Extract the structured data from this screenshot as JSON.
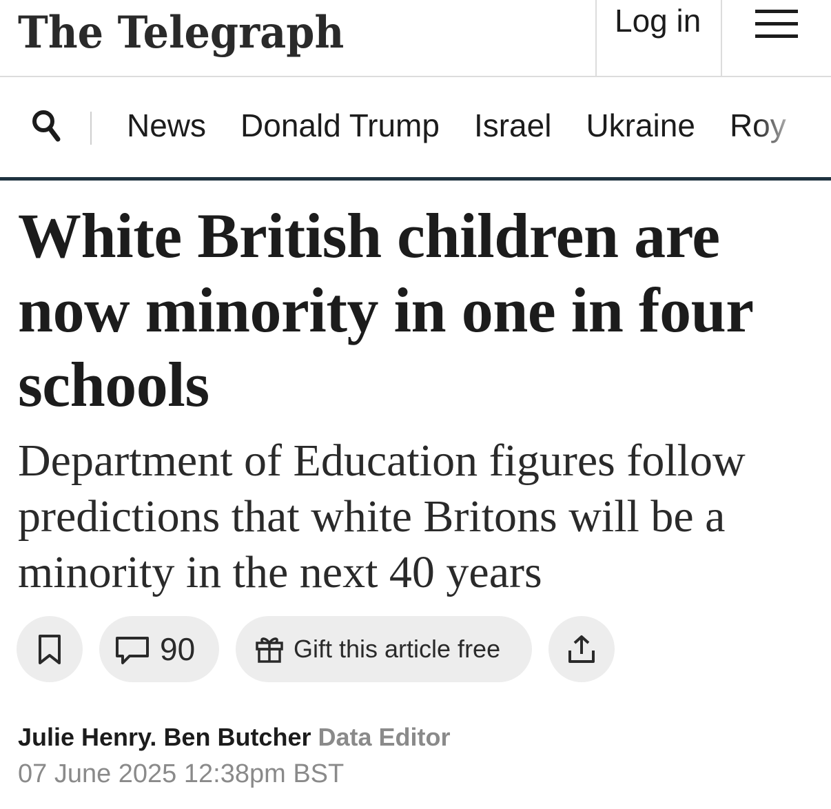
{
  "masthead": {
    "logo_text": "The Telegraph",
    "login_label": "Log in",
    "menu_icon": "hamburger-menu-icon"
  },
  "nav": {
    "search_icon": "search-icon",
    "items": [
      {
        "label": "News"
      },
      {
        "label": "Donald Trump"
      },
      {
        "label": "Israel"
      },
      {
        "label": "Ukraine"
      },
      {
        "label": "Roy"
      }
    ]
  },
  "article": {
    "headline": "White British children are now minority in one in four schools",
    "standfirst": "Department of Education figures follow predictions that white Britons will be a minority in the next 40 years",
    "actions": {
      "bookmark_icon": "bookmark-icon",
      "comment_icon": "comment-icon",
      "comment_count": "90",
      "gift_icon": "gift-icon",
      "gift_label": "Gift this article free",
      "share_icon": "share-icon"
    },
    "byline": {
      "authors": [
        {
          "name": "Julie Henry."
        },
        {
          "name": "Ben Butcher"
        }
      ],
      "role": "Data Editor",
      "date": "07 June 2025",
      "time": "12:38pm BST"
    }
  },
  "colors": {
    "nav_rule": "#1f3340",
    "button_bg": "#ededed",
    "muted_text": "#8a8a8a",
    "text": "#1c1c1c"
  }
}
